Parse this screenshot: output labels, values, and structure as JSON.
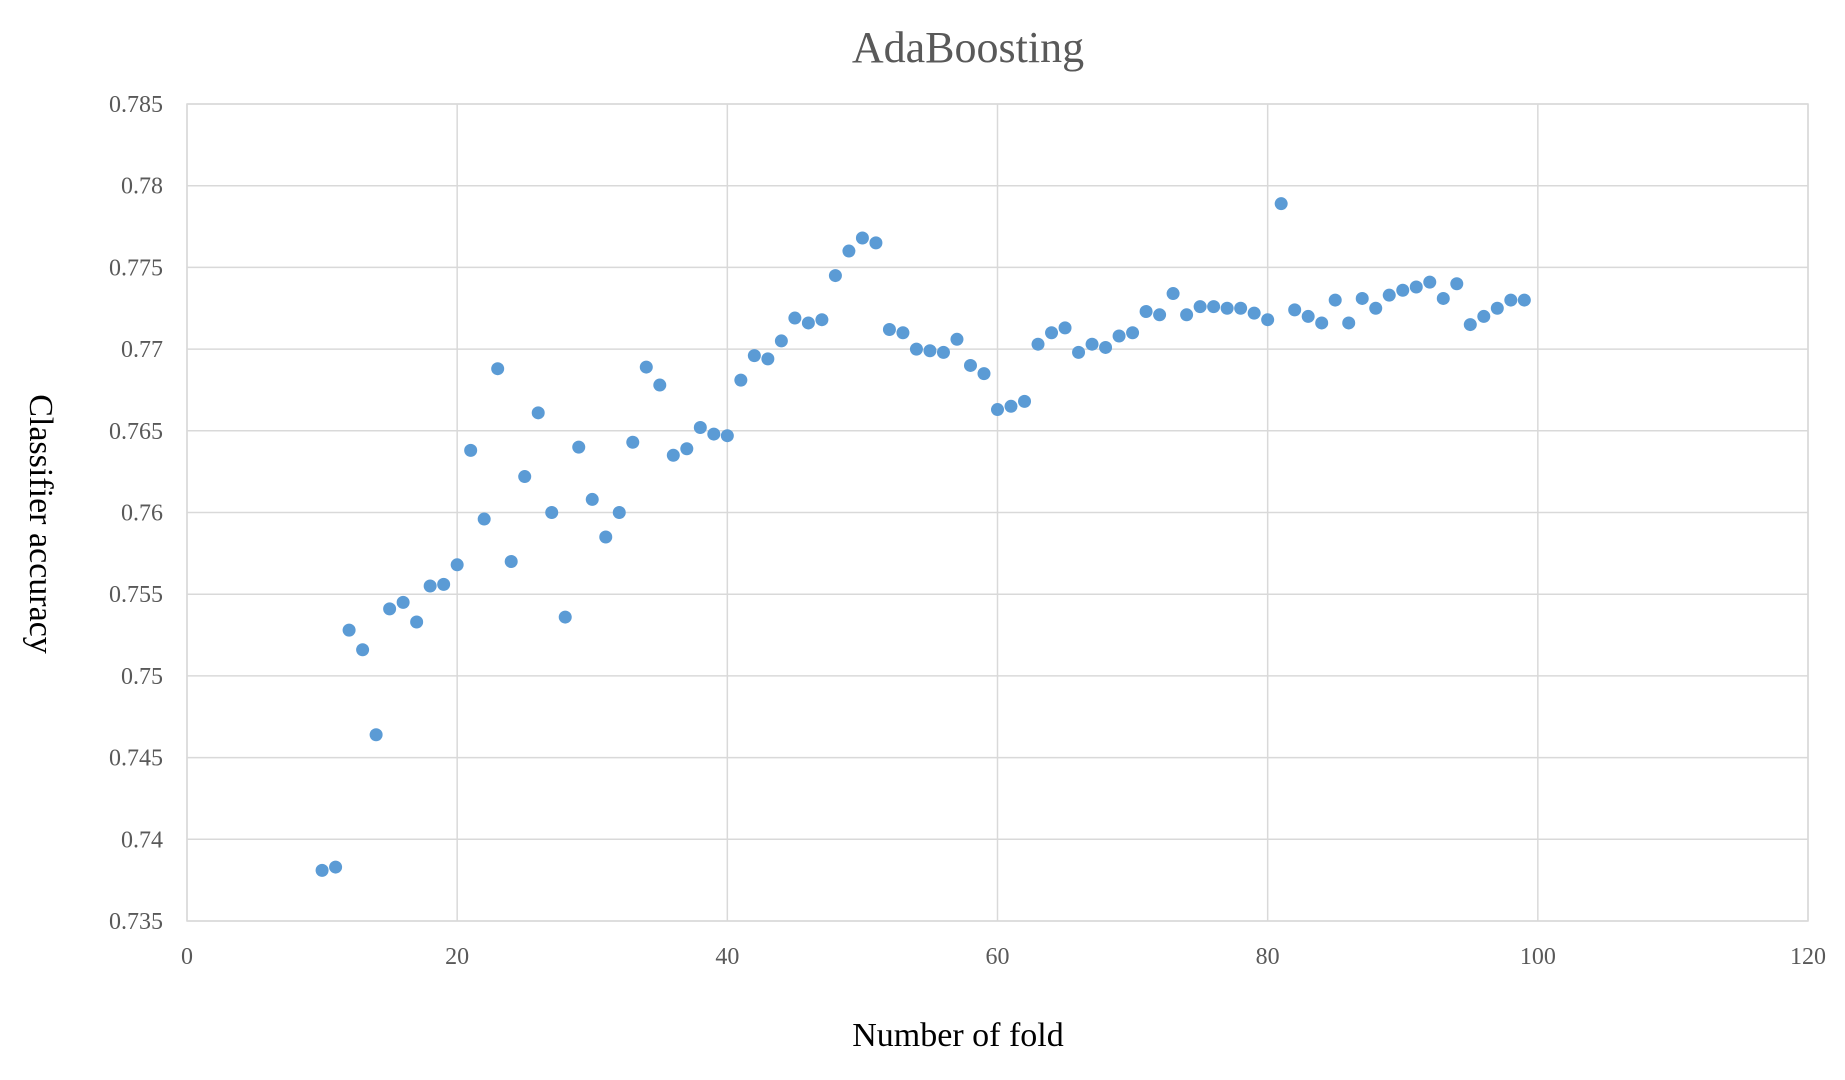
{
  "chart_data": {
    "type": "scatter",
    "title": "AdaBoosting",
    "xlabel": "Number of fold",
    "ylabel": "Classifier accuracy",
    "xlim": [
      0,
      120
    ],
    "ylim": [
      0.735,
      0.785
    ],
    "x_ticks": [
      "0",
      "20",
      "40",
      "60",
      "80",
      "100",
      "120"
    ],
    "y_ticks": [
      "0.735",
      "0.74",
      "0.745",
      "0.75",
      "0.755",
      "0.76",
      "0.765",
      "0.77",
      "0.775",
      "0.78",
      "0.785"
    ],
    "grid": true,
    "legend": "none",
    "marker_color": "#5b9bd5",
    "series": [
      {
        "x": [
          10,
          11,
          12,
          13,
          14,
          15,
          16,
          17,
          18,
          19,
          20,
          21,
          22,
          23,
          24,
          25,
          26,
          27,
          28,
          29,
          30,
          31,
          32,
          33,
          34,
          35,
          36,
          37,
          38,
          39,
          40,
          41,
          42,
          43,
          44,
          45,
          46,
          47,
          48,
          49,
          50,
          51,
          52,
          53,
          54,
          55,
          56,
          57,
          58,
          59,
          60,
          61,
          62,
          63,
          64,
          65,
          66,
          67,
          68,
          69,
          70,
          71,
          72,
          73,
          74,
          75,
          76,
          77,
          78,
          79,
          80,
          81,
          82,
          83,
          84,
          85,
          86,
          87,
          88,
          89,
          90,
          91,
          92,
          93,
          94,
          95,
          96,
          97,
          98,
          99
        ],
        "y": [
          0.7381,
          0.7383,
          0.7528,
          0.7516,
          0.7464,
          0.7541,
          0.7545,
          0.7533,
          0.7555,
          0.7556,
          0.7568,
          0.7638,
          0.7596,
          0.7688,
          0.757,
          0.7622,
          0.7661,
          0.76,
          0.7536,
          0.764,
          0.7608,
          0.7585,
          0.76,
          0.7643,
          0.7689,
          0.7678,
          0.7635,
          0.7639,
          0.7652,
          0.7648,
          0.7647,
          0.7681,
          0.7696,
          0.7694,
          0.7705,
          0.7719,
          0.7716,
          0.7718,
          0.7745,
          0.776,
          0.7768,
          0.7765,
          0.7712,
          0.771,
          0.77,
          0.7699,
          0.7698,
          0.7706,
          0.769,
          0.7685,
          0.7663,
          0.7665,
          0.7668,
          0.7703,
          0.771,
          0.7713,
          0.7698,
          0.7703,
          0.7701,
          0.7708,
          0.771,
          0.7723,
          0.7721,
          0.7734,
          0.7721,
          0.7726,
          0.7726,
          0.7725,
          0.7725,
          0.7722,
          0.7718,
          0.7789,
          0.7724,
          0.772,
          0.7716,
          0.773,
          0.7716,
          0.7731,
          0.7725,
          0.7733,
          0.7736,
          0.7738,
          0.7741,
          0.7731,
          0.774,
          0.7715,
          0.772,
          0.7725,
          0.773,
          0.773
        ]
      }
    ]
  }
}
